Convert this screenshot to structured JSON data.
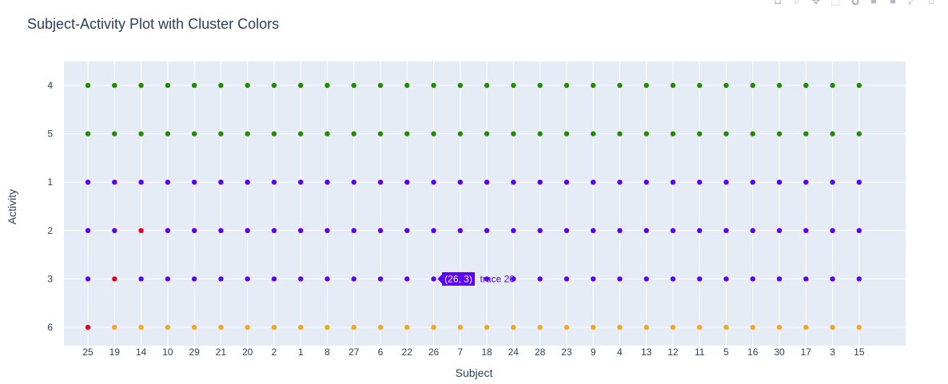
{
  "chart_data": {
    "type": "scatter",
    "title": "Subject-Activity Plot with Cluster Colors",
    "xlabel": "Subject",
    "ylabel": "Activity",
    "x_categories": [
      "25",
      "19",
      "14",
      "10",
      "29",
      "21",
      "20",
      "2",
      "1",
      "8",
      "27",
      "6",
      "22",
      "26",
      "7",
      "18",
      "24",
      "28",
      "23",
      "9",
      "4",
      "13",
      "12",
      "11",
      "5",
      "16",
      "30",
      "17",
      "3",
      "15"
    ],
    "y_categories_top_to_bottom": [
      "4",
      "5",
      "1",
      "2",
      "3",
      "6"
    ],
    "cluster_colors": {
      "green": "#228b00",
      "purple": "#5a00ff",
      "red": "#e6001a",
      "orange": "#f5a623"
    },
    "row_default_cluster": {
      "4": "green",
      "5": "green",
      "1": "purple",
      "2": "purple",
      "3": "purple",
      "6": "orange"
    },
    "exceptions": [
      {
        "x": "14",
        "y": "2",
        "cluster": "red"
      },
      {
        "x": "19",
        "y": "3",
        "cluster": "red"
      },
      {
        "x": "25",
        "y": "6",
        "cluster": "red"
      }
    ],
    "hover": {
      "x": "26",
      "y": "3",
      "label": "(26, 3)",
      "trace": "trace 26"
    }
  },
  "modebar": {
    "icons": [
      "camera-icon",
      "zoom-icon",
      "pan-icon",
      "box-select-icon",
      "lasso-icon",
      "zoom-in-icon",
      "zoom-out-icon",
      "autoscale-icon",
      "reset-axes-icon"
    ]
  }
}
